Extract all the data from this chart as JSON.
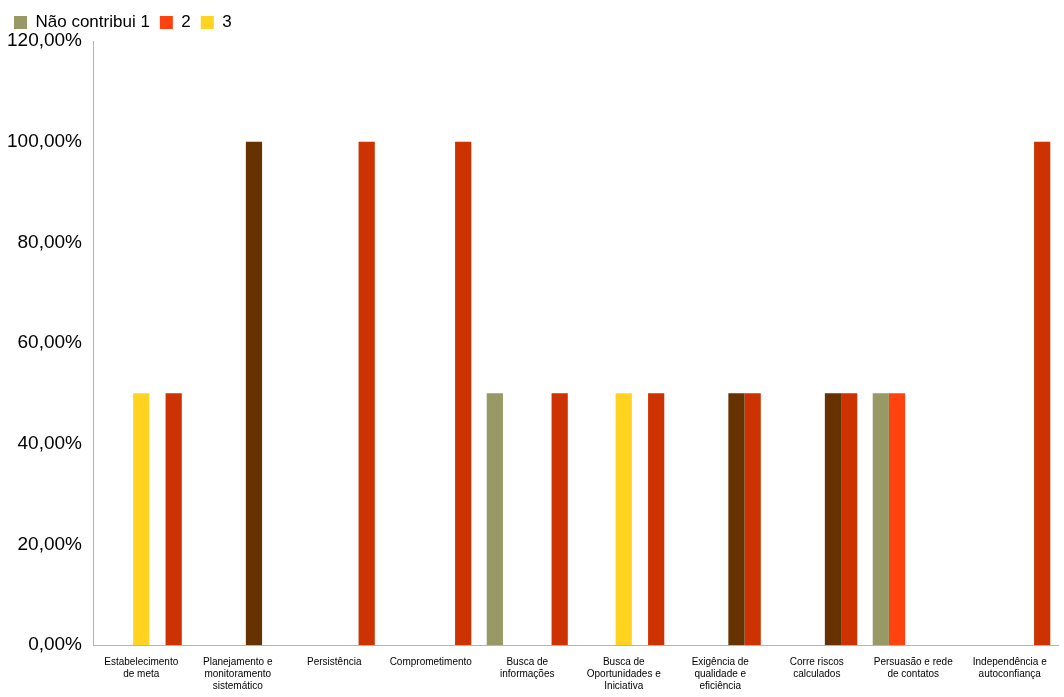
{
  "chart_data": {
    "type": "bar",
    "categories": [
      "Estabelecimento de meta",
      "Planejamento e monitoramento sistemático",
      "Persistência",
      "Comprometimento",
      "Busca de informações",
      "Busca de Oportunidades e Iniciativa",
      "Exigência de qualidade e eficiência",
      "Corre riscos calculados",
      "Persuasão e rede de contatos",
      "Independência e autoconfiança"
    ],
    "series": [
      {
        "name": "Não contribui 1",
        "color": "#999966",
        "values": [
          null,
          null,
          null,
          null,
          50,
          null,
          null,
          null,
          50,
          null
        ]
      },
      {
        "name": "2",
        "color": "#ff420e",
        "values": [
          null,
          null,
          null,
          null,
          null,
          null,
          null,
          null,
          50,
          null
        ]
      },
      {
        "name": "3",
        "color": "#ffd320",
        "values": [
          50,
          null,
          null,
          null,
          null,
          50,
          null,
          null,
          null,
          null
        ]
      },
      {
        "color": "#663300",
        "values": [
          null,
          100,
          null,
          null,
          null,
          null,
          50,
          50,
          null,
          null
        ]
      },
      {
        "color": "#cc3300",
        "values": [
          50,
          null,
          100,
          100,
          50,
          50,
          50,
          50,
          null,
          100
        ]
      }
    ],
    "ylim": [
      0,
      120
    ],
    "yticks": [
      {
        "value": 0,
        "label": "0,00%"
      },
      {
        "value": 20,
        "label": "20,00%"
      },
      {
        "value": 40,
        "label": "40,00%"
      },
      {
        "value": 60,
        "label": "60,00%"
      },
      {
        "value": 80,
        "label": "80,00%"
      },
      {
        "value": 100,
        "label": "100,00%"
      },
      {
        "value": 120,
        "label": "120,00%"
      }
    ],
    "grid": false,
    "legend": "top left"
  }
}
